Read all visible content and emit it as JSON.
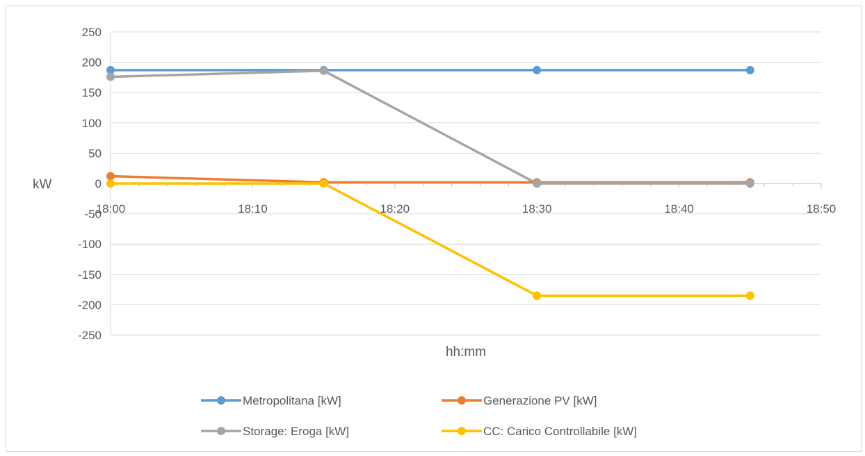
{
  "chart_data": {
    "type": "line",
    "title": "",
    "xlabel": "hh:mm",
    "ylabel": "kW",
    "x_ticks": [
      "18:00",
      "18:10",
      "18:20",
      "18:30",
      "18:40",
      "18:50"
    ],
    "x_range": [
      "18:00",
      "18:50"
    ],
    "ylim": [
      -250,
      250
    ],
    "y_ticks": [
      "250",
      "200",
      "150",
      "100",
      "50",
      "0",
      "-50",
      "-100",
      "-150",
      "-200",
      "-250"
    ],
    "grid": true,
    "legend_position": "bottom",
    "x": [
      "18:00",
      "18:15",
      "18:30",
      "18:45"
    ],
    "series": [
      {
        "name": "Metropolitana [kW]",
        "color": "#5b9bd5",
        "values": [
          187,
          187,
          187,
          187
        ]
      },
      {
        "name": "Generazione PV [kW]",
        "color": "#ed7d31",
        "values": [
          12,
          2,
          2,
          2
        ]
      },
      {
        "name": "Storage: Eroga [kW]",
        "color": "#a5a5a5",
        "values": [
          176,
          186,
          0,
          0
        ]
      },
      {
        "name": "CC: Carico Controllabile [kW]",
        "color": "#ffc000",
        "values": [
          0,
          0,
          -185,
          -185
        ]
      }
    ]
  }
}
